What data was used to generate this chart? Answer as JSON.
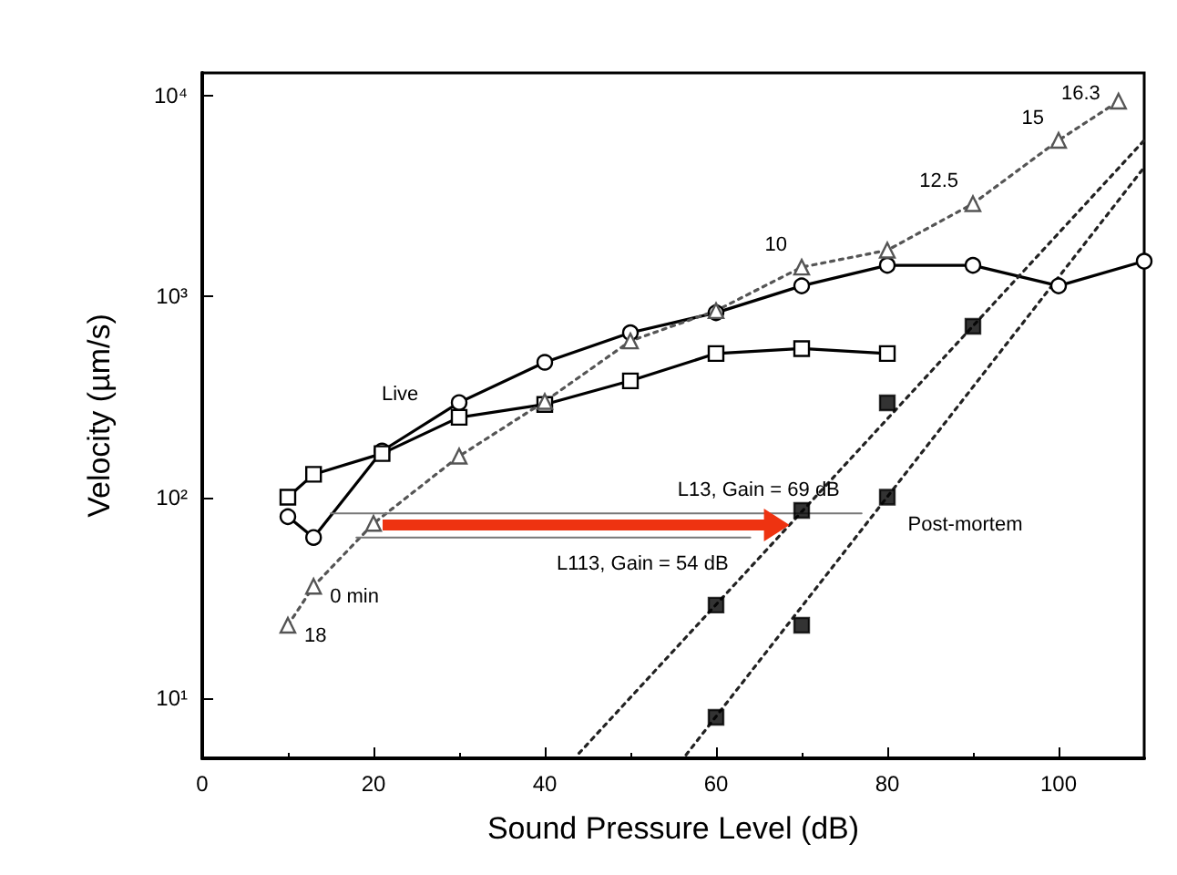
{
  "chart_data": {
    "type": "line",
    "xlabel": "Sound Pressure Level (dB)",
    "ylabel": "Velocity (µm/s)",
    "xlim": [
      0,
      110
    ],
    "xticks": [
      0,
      20,
      40,
      60,
      80,
      100
    ],
    "ylim": [
      5,
      13000
    ],
    "log": "y",
    "yticks": [
      {
        "value": 10,
        "label": "10¹"
      },
      {
        "value": 100,
        "label": "10²"
      },
      {
        "value": 1000,
        "label": "10³"
      },
      {
        "value": 10000,
        "label": "10⁴"
      }
    ],
    "grid": false,
    "series": [
      {
        "color": "#000000",
        "marker": "circle",
        "line_style": "solid",
        "x": [
          10,
          13,
          21,
          30,
          40,
          50,
          60,
          70,
          80,
          90,
          100,
          110
        ],
        "values": [
          80,
          63,
          170,
          296,
          470,
          660,
          830,
          1130,
          1430,
          1430,
          1130,
          1500
        ]
      },
      {
        "color": "#000000",
        "marker": "square",
        "line_style": "solid",
        "x": [
          10,
          13,
          21,
          30,
          40,
          50,
          60,
          70,
          80
        ],
        "values": [
          100,
          130,
          165,
          250,
          290,
          380,
          520,
          550,
          520
        ]
      },
      {
        "color": "#555555",
        "marker": "triangle",
        "line_style": "dotted",
        "x": [
          10,
          13,
          20,
          30,
          40,
          50,
          60,
          70,
          80,
          90,
          100,
          107
        ],
        "values": [
          23,
          36,
          74,
          160,
          300,
          600,
          850,
          1400,
          1700,
          2900,
          6000,
          9400
        ]
      },
      {
        "type": "scatter",
        "color": "#000000",
        "marker": "square",
        "x": [
          60,
          70,
          80,
          90
        ],
        "values": [
          29,
          86,
          295,
          710
        ]
      },
      {
        "type": "scatter",
        "color": "#000000",
        "marker": "square",
        "x": [
          60,
          70,
          80
        ],
        "values": [
          8,
          23,
          100
        ]
      },
      {
        "color": "#222222",
        "marker": "none",
        "line_style": "dotted",
        "x": [
          44,
          110
        ],
        "values": [
          5.3,
          6000
        ]
      },
      {
        "color": "#222222",
        "marker": "none",
        "line_style": "dotted",
        "x": [
          56.5,
          110
        ],
        "values": [
          5.2,
          4400
        ]
      },
      {
        "name": "L13, Gain = 69 dB",
        "color": "#777777",
        "marker": "none",
        "line_style": "solid",
        "x": [
          15,
          77
        ],
        "values": [
          83,
          83
        ]
      },
      {
        "name": "L113, Gain = 54 dB",
        "color": "#777777",
        "marker": "none",
        "line_style": "solid",
        "x": [
          18,
          64
        ],
        "values": [
          63,
          63
        ]
      }
    ],
    "annotations": [
      "Live",
      "Post-mortem",
      {
        "text": "18",
        "x": 10,
        "y": 23
      },
      {
        "text": "0 min",
        "x": 13,
        "y": 36
      },
      {
        "text": "10",
        "x": 70,
        "y": 1400
      },
      {
        "text": "12.5",
        "x": 90,
        "y": 2900
      },
      {
        "text": "15",
        "x": 100,
        "y": 6000
      },
      {
        "text": "16.3",
        "x": 107,
        "y": 9400
      }
    ]
  }
}
